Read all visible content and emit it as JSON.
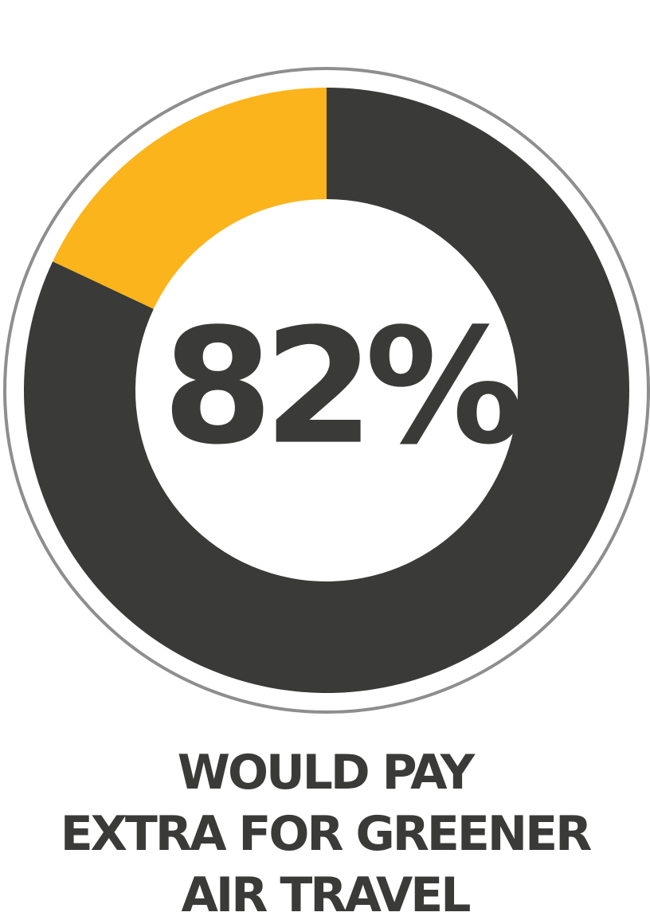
{
  "chart_data": {
    "type": "donut",
    "series": [
      {
        "color": "#3a3b38",
        "values": [
          82
        ],
        "value_labels": [
          "82%"
        ]
      },
      {
        "color": "#fbb41c",
        "values": [
          18
        ]
      }
    ],
    "total": 100,
    "caption": [
      "WOULD PAY",
      "EXTRA FOR GREENER",
      "AIR TRAVEL"
    ]
  }
}
